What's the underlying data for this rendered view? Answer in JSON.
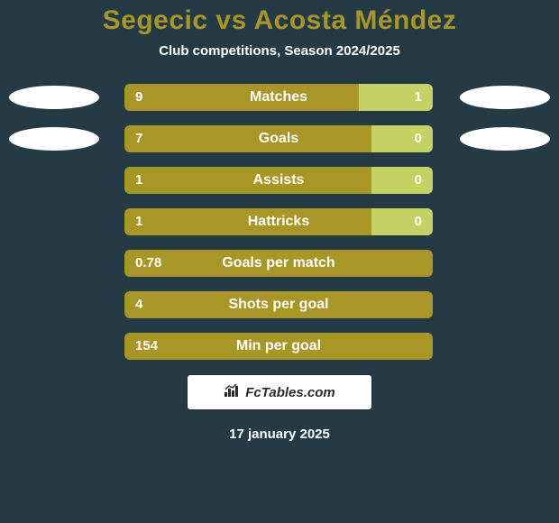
{
  "background_color": "#243b45",
  "title_color": "#a89627",
  "title": "Segecic vs Acosta Méndez",
  "subtitle": "Club competitions, Season 2024/2025",
  "footer": {
    "logo_text": "FcTables.com",
    "date": "17 january 2025"
  },
  "bar_track_width": 342,
  "rows": [
    {
      "label": "Matches",
      "left_value": "9",
      "right_value": "1",
      "left_color": "#a89627",
      "right_color": "#c4d163",
      "left_pct": 76,
      "right_pct": 24,
      "show_badges": true
    },
    {
      "label": "Goals",
      "left_value": "7",
      "right_value": "0",
      "left_color": "#a89627",
      "right_color": "#c4d163",
      "left_pct": 80,
      "right_pct": 20,
      "show_badges": true
    },
    {
      "label": "Assists",
      "left_value": "1",
      "right_value": "0",
      "left_color": "#a89627",
      "right_color": "#c4d163",
      "left_pct": 80,
      "right_pct": 20,
      "show_badges": false
    },
    {
      "label": "Hattricks",
      "left_value": "1",
      "right_value": "0",
      "left_color": "#a89627",
      "right_color": "#c4d163",
      "left_pct": 80,
      "right_pct": 20,
      "show_badges": false
    },
    {
      "label": "Goals per match",
      "left_value": "0.78",
      "right_value": "",
      "left_color": "#a89627",
      "right_color": "#c4d163",
      "left_pct": 100,
      "right_pct": 0,
      "show_badges": false
    },
    {
      "label": "Shots per goal",
      "left_value": "4",
      "right_value": "",
      "left_color": "#a89627",
      "right_color": "#c4d163",
      "left_pct": 100,
      "right_pct": 0,
      "show_badges": false
    },
    {
      "label": "Min per goal",
      "left_value": "154",
      "right_value": "",
      "left_color": "#a89627",
      "right_color": "#c4d163",
      "left_pct": 100,
      "right_pct": 0,
      "show_badges": false
    }
  ]
}
